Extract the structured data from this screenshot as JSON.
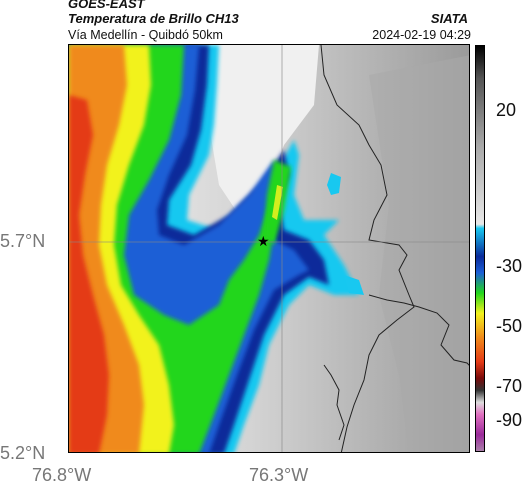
{
  "header": {
    "title_line1": "GOES-EAST",
    "title_line2": "Temperatura de Brillo CH13",
    "subtitle": "Vía Medellín - Quibdó 50km",
    "organization": "SIATA",
    "timestamp": "2024-02-19 04:29"
  },
  "map": {
    "lat_labels": [
      "5.7°N",
      "5.2°N"
    ],
    "lon_labels": [
      "76.8°W",
      "76.3°W"
    ],
    "marker": "star-marker",
    "colors": {
      "cold_dark": "#0a2a9a",
      "cyan": "#18c8f0",
      "green": "#22d61c",
      "yellow": "#f2f21e",
      "orange": "#f08a1a",
      "red": "#e43a16",
      "warm_gray": "#bdbdbd"
    }
  },
  "colorbar": {
    "ticks": [
      "20",
      "-30",
      "-50",
      "-70",
      "-90"
    ],
    "tick_values": [
      20,
      -30,
      -50,
      -70,
      -90
    ],
    "range": [
      -95,
      40
    ]
  }
}
